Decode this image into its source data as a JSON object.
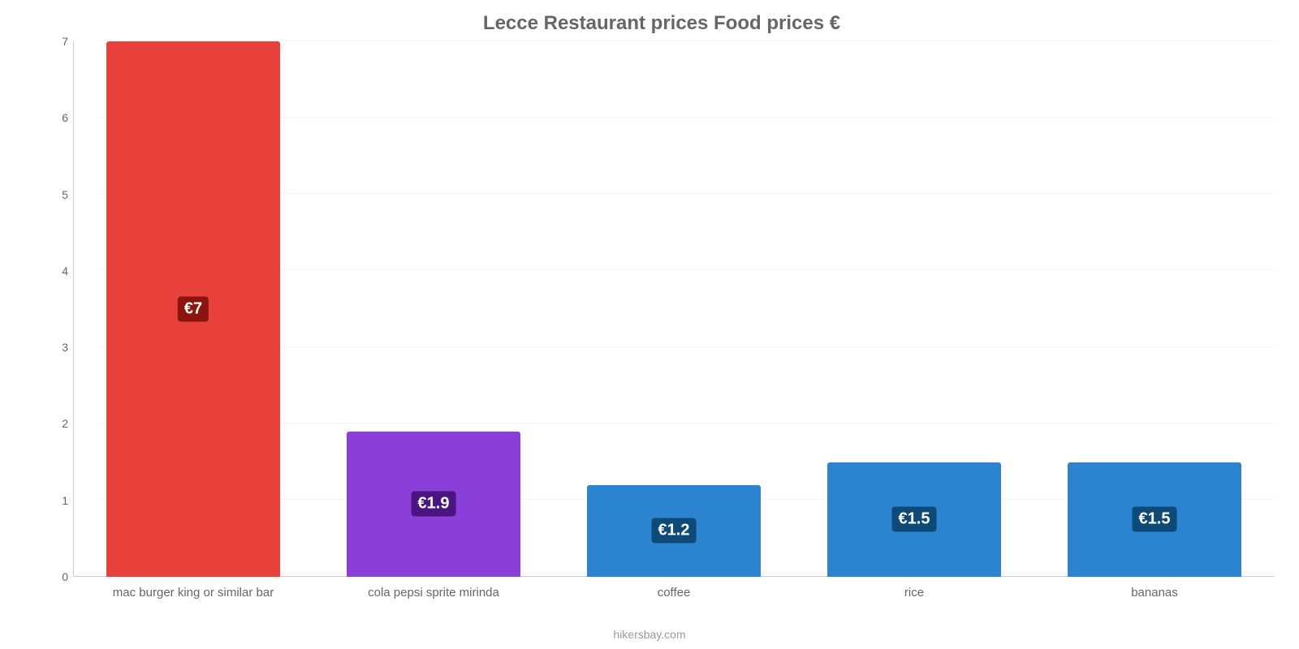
{
  "chart": {
    "type": "bar",
    "title": "Lecce Restaurant prices Food prices €",
    "title_fontsize": 24,
    "title_color": "#666666",
    "source": "hikersbay.com",
    "source_color": "#999999",
    "background_color": "#ffffff",
    "axis_color": "#666666",
    "grid_color": "#f5f5f5",
    "ylim_min": 0,
    "ylim_max": 7,
    "yticks": [
      0,
      1,
      2,
      3,
      4,
      5,
      6,
      7
    ],
    "tick_fontsize": 14,
    "xlabel_fontsize": 15,
    "bar_width_pct": 72,
    "bar_label_fontsize": 20,
    "categories": [
      "mac burger king or similar bar",
      "cola pepsi sprite mirinda",
      "coffee",
      "rice",
      "bananas"
    ],
    "values": [
      7,
      1.9,
      1.2,
      1.5,
      1.5
    ],
    "value_labels": [
      "€7",
      "€1.9",
      "€1.2",
      "€1.5",
      "€1.5"
    ],
    "bar_colors": [
      "#e8403a",
      "#8b3fd9",
      "#2c84d1",
      "#2c84d1",
      "#2c84d1"
    ],
    "label_bg_colors": [
      "#8a1510",
      "#4a1580",
      "#0e4a78",
      "#0e4a78",
      "#0e4a78"
    ]
  }
}
